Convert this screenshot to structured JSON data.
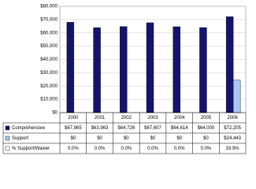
{
  "chart_data": {
    "type": "bar",
    "categories": [
      "2000",
      "2001",
      "2002",
      "2003",
      "2004",
      "2005",
      "2006"
    ],
    "series": [
      {
        "name": "Comprehensive",
        "color": "#14146e",
        "values": [
          67965,
          63963,
          64726,
          67607,
          64614,
          64000,
          72205
        ],
        "value_labels": [
          "$67,965",
          "$63,963",
          "$64,726",
          "$67,607",
          "$64,614",
          "$64,000",
          "$72,205"
        ]
      },
      {
        "name": "Support",
        "color": "#a8c8f0",
        "values": [
          0,
          0,
          0,
          0,
          0,
          0,
          24443
        ],
        "value_labels": [
          "$0",
          "$0",
          "$0",
          "$0",
          "$0",
          "$0",
          "$24,443"
        ]
      },
      {
        "name": "% Support/Waiver",
        "color": "#ffffff",
        "values": [
          0.0,
          0.0,
          0.0,
          0.0,
          0.0,
          0.0,
          33.9
        ],
        "value_labels": [
          "0.0%",
          "0.0%",
          "0.0%",
          "0.0%",
          "0.0%",
          "0.0%",
          "33.9%"
        ]
      }
    ],
    "ylim": [
      0,
      80000
    ],
    "yticks": [
      {
        "value": 0,
        "label": "$0"
      },
      {
        "value": 10000,
        "label": "$10,000"
      },
      {
        "value": 20000,
        "label": "$20,000"
      },
      {
        "value": 30000,
        "label": "$30,000"
      },
      {
        "value": 40000,
        "label": "$40,000"
      },
      {
        "value": 50000,
        "label": "$50,000"
      },
      {
        "value": 60000,
        "label": "$60,000"
      },
      {
        "value": 70000,
        "label": "$70,000"
      },
      {
        "value": 80000,
        "label": "$80,000"
      }
    ],
    "grid": true
  }
}
